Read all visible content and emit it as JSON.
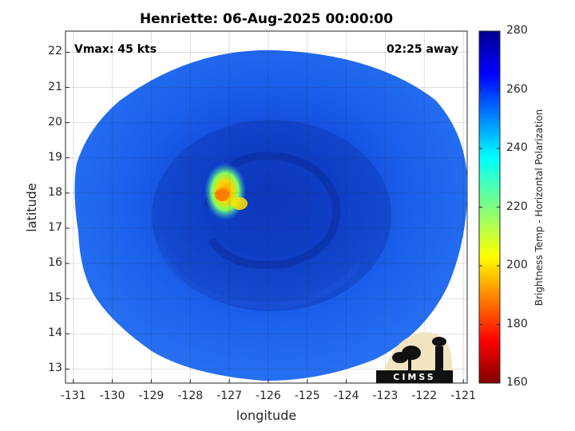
{
  "title": "Henriette: 06-Aug-2025 00:00:00",
  "vmax_label": "Vmax: 45 kts",
  "time_away_label": "02:25 away",
  "axes": {
    "xlabel": "longitude",
    "ylabel": "latitude",
    "x_ticks": [
      "-131",
      "-130",
      "-129",
      "-128",
      "-127",
      "-126",
      "-125",
      "-124",
      "-123",
      "-122",
      "-121"
    ],
    "y_ticks": [
      "22",
      "21",
      "20",
      "19",
      "18",
      "17",
      "16",
      "15",
      "14",
      "13"
    ],
    "xlim": [
      -131.2,
      -120.9
    ],
    "ylim": [
      12.6,
      22.6
    ]
  },
  "colorbar": {
    "label": "Brightness Temp - Horizontal Polarization",
    "ticks": [
      "280",
      "260",
      "240",
      "220",
      "200",
      "180",
      "160"
    ],
    "range": [
      160,
      280
    ],
    "colormap": "jet"
  },
  "logo": {
    "text": "CIMSS",
    "icon": "cimss-logo-icon"
  },
  "colors": {
    "background_scene": "#1a5ee8",
    "eye_ring": "#0a2fa8",
    "convection_hot": "#ff9a00"
  }
}
